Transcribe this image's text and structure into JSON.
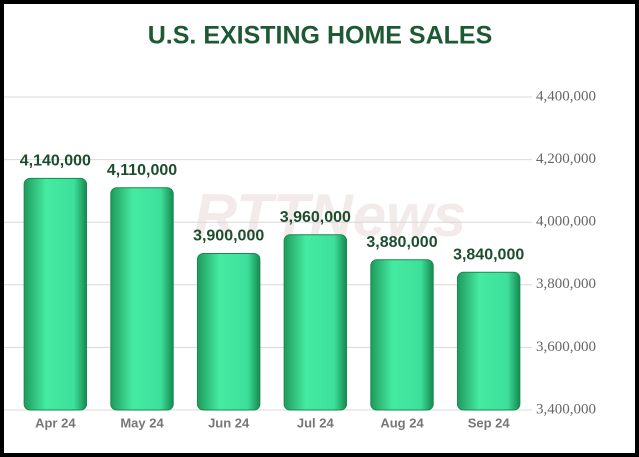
{
  "chart_data": {
    "type": "bar",
    "title": "U.S. EXISTING HOME SALES",
    "watermark": "RTTNews",
    "categories": [
      "Apr 24",
      "May 24",
      "Jun 24",
      "Jul 24",
      "Aug 24",
      "Sep 24"
    ],
    "values": [
      4140000,
      4110000,
      3900000,
      3960000,
      3880000,
      3840000
    ],
    "value_labels": [
      "4,140,000",
      "4,110,000",
      "3,900,000",
      "3,960,000",
      "3,880,000",
      "3,840,000"
    ],
    "color": "#3ee39a",
    "ylim": [
      3400000,
      4400000
    ],
    "yticks": [
      {
        "value": 3400000,
        "label": "3,400,000"
      },
      {
        "value": 3600000,
        "label": "3,600,000"
      },
      {
        "value": 3800000,
        "label": "3,800,000"
      },
      {
        "value": 4000000,
        "label": "4,000,000"
      },
      {
        "value": 4200000,
        "label": "4,200,000"
      },
      {
        "value": 4400000,
        "label": "4,400,000"
      }
    ],
    "grid": true,
    "y_axis_side": "right"
  }
}
